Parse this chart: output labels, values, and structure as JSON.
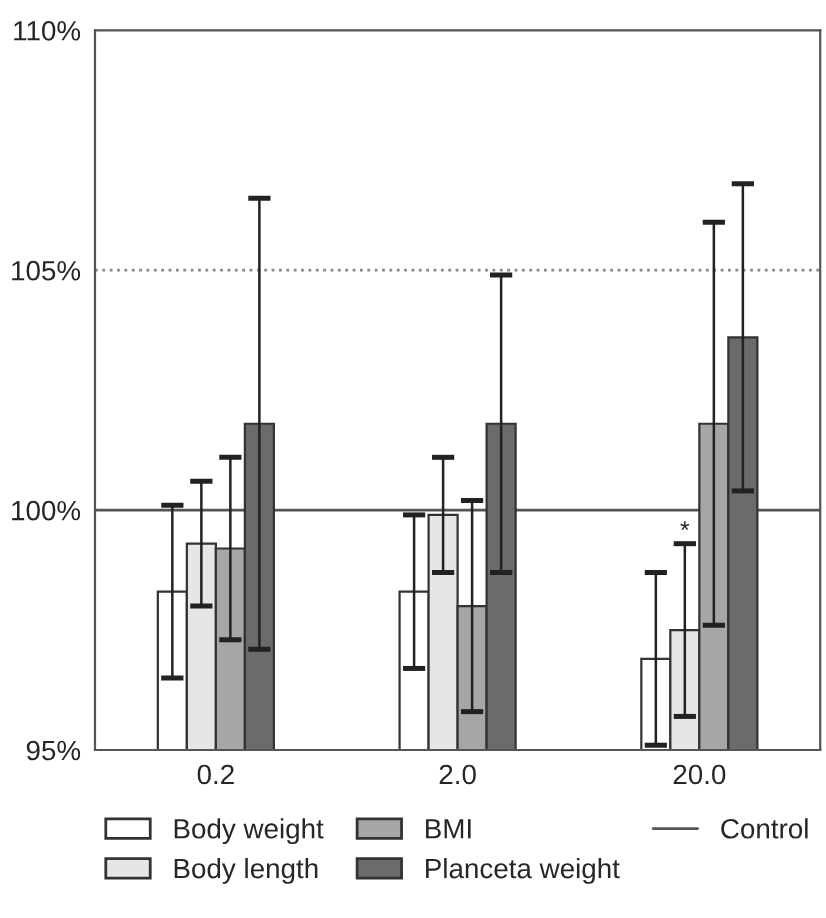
{
  "chart_data": {
    "type": "bar",
    "categories": [
      "0.2",
      "2.0",
      "20.0"
    ],
    "series": [
      {
        "name": "Body weight",
        "color": "#ffffff",
        "values": [
          98.3,
          98.3,
          96.9
        ],
        "errors": [
          1.8,
          1.6,
          1.8
        ]
      },
      {
        "name": "Body length",
        "color": "#e6e6e6",
        "values": [
          99.3,
          99.9,
          97.5
        ],
        "errors": [
          1.3,
          1.2,
          1.8
        ]
      },
      {
        "name": "BMI",
        "color": "#a6a6a6",
        "values": [
          99.2,
          98.0,
          101.8
        ],
        "errors": [
          1.9,
          2.2,
          4.2
        ]
      },
      {
        "name": "Planceta weight",
        "color": "#6b6b6b",
        "values": [
          101.8,
          101.8,
          103.6
        ],
        "errors": [
          4.7,
          3.1,
          3.2
        ]
      }
    ],
    "ylim": [
      95,
      110
    ],
    "yticks": [
      {
        "value": 95,
        "label": "95%"
      },
      {
        "value": 100,
        "label": "100%"
      },
      {
        "value": 105,
        "label": "105%"
      },
      {
        "value": 110,
        "label": "110%"
      }
    ],
    "ref_lines": [
      {
        "axis": "y",
        "value": 100,
        "label": "Control",
        "color": "#555555",
        "line_style": "solid"
      },
      {
        "axis": "y",
        "value": 105,
        "color": "#888888",
        "line_style": "dotted"
      }
    ],
    "annotations": [
      {
        "text": "*",
        "x": "20.0",
        "y": 99.3
      }
    ],
    "legend": "bottom",
    "grid": false
  }
}
